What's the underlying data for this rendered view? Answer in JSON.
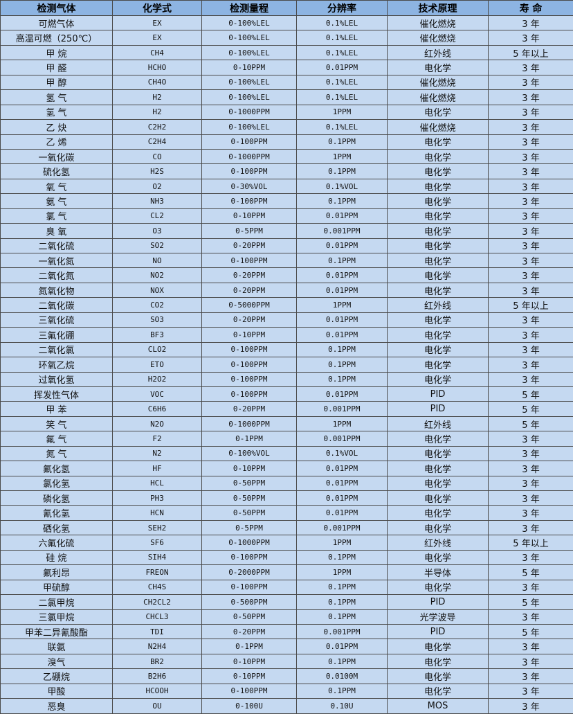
{
  "headers": [
    "检测气体",
    "化学式",
    "检测量程",
    "分辨率",
    "技术原理",
    "寿 命"
  ],
  "rows": [
    [
      "可燃气体",
      "EX",
      "0-100%LEL",
      "0.1%LEL",
      "催化燃烧",
      "3 年"
    ],
    [
      "高温可燃（250℃）",
      "EX",
      "0-100%LEL",
      "0.1%LEL",
      "催化燃烧",
      "3 年"
    ],
    [
      "甲 烷",
      "CH4",
      "0-100%LEL",
      "0.1%LEL",
      "红外线",
      "5 年以上"
    ],
    [
      "甲 醛",
      "HCHO",
      "0-10PPM",
      "0.01PPM",
      "电化学",
      "3 年"
    ],
    [
      "甲 醇",
      "CH4O",
      "0-100%LEL",
      "0.1%LEL",
      "催化燃烧",
      "3 年"
    ],
    [
      "氢 气",
      "H2",
      "0-100%LEL",
      "0.1%LEL",
      "催化燃烧",
      "3 年"
    ],
    [
      "氢 气",
      "H2",
      "0-1000PPM",
      "1PPM",
      "电化学",
      "3 年"
    ],
    [
      "乙 炔",
      "C2H2",
      "0-100%LEL",
      "0.1%LEL",
      "催化燃烧",
      "3 年"
    ],
    [
      "乙 烯",
      "C2H4",
      "0-100PPM",
      "0.1PPM",
      "电化学",
      "3 年"
    ],
    [
      "一氧化碳",
      "CO",
      "0-1000PPM",
      "1PPM",
      "电化学",
      "3 年"
    ],
    [
      "硫化氢",
      "H2S",
      "0-100PPM",
      "0.1PPM",
      "电化学",
      "3 年"
    ],
    [
      "氧 气",
      "O2",
      "0-30%VOL",
      "0.1%VOL",
      "电化学",
      "3 年"
    ],
    [
      "氨 气",
      "NH3",
      "0-100PPM",
      "0.1PPM",
      "电化学",
      "3 年"
    ],
    [
      "氯 气",
      "CL2",
      "0-10PPM",
      "0.01PPM",
      "电化学",
      "3 年"
    ],
    [
      "臭 氧",
      "O3",
      "0-5PPM",
      "0.001PPM",
      "电化学",
      "3 年"
    ],
    [
      "二氧化硫",
      "SO2",
      "0-20PPM",
      "0.01PPM",
      "电化学",
      "3 年"
    ],
    [
      "一氧化氮",
      "NO",
      "0-100PPM",
      "0.1PPM",
      "电化学",
      "3 年"
    ],
    [
      "二氧化氮",
      "NO2",
      "0-20PPM",
      "0.01PPM",
      "电化学",
      "3 年"
    ],
    [
      "氮氧化物",
      "NOX",
      "0-20PPM",
      "0.01PPM",
      "电化学",
      "3 年"
    ],
    [
      "二氧化碳",
      "CO2",
      "0-5000PPM",
      "1PPM",
      "红外线",
      "5 年以上"
    ],
    [
      "三氧化硫",
      "SO3",
      "0-20PPM",
      "0.01PPM",
      "电化学",
      "3 年"
    ],
    [
      "三氟化硼",
      "BF3",
      "0-10PPM",
      "0.01PPM",
      "电化学",
      "3 年"
    ],
    [
      "二氧化氯",
      "CLO2",
      "0-100PPM",
      "0.1PPM",
      "电化学",
      "3 年"
    ],
    [
      "环氧乙烷",
      "ETO",
      "0-100PPM",
      "0.1PPM",
      "电化学",
      "3 年"
    ],
    [
      "过氧化氢",
      "H2O2",
      "0-100PPM",
      "0.1PPM",
      "电化学",
      "3 年"
    ],
    [
      "挥发性气体",
      "VOC",
      "0-100PPM",
      "0.01PPM",
      "PID",
      "5 年"
    ],
    [
      "甲 苯",
      "C6H6",
      "0-20PPM",
      "0.001PPM",
      "PID",
      "5 年"
    ],
    [
      "笑 气",
      "N2O",
      "0-1000PPM",
      "1PPM",
      "红外线",
      "5 年"
    ],
    [
      "氟 气",
      "F2",
      "0-1PPM",
      "0.001PPM",
      "电化学",
      "3 年"
    ],
    [
      "氮 气",
      "N2",
      "0-100%VOL",
      "0.1%VOL",
      "电化学",
      "3 年"
    ],
    [
      "氟化氢",
      "HF",
      "0-10PPM",
      "0.01PPM",
      "电化学",
      "3 年"
    ],
    [
      "氯化氢",
      "HCL",
      "0-50PPM",
      "0.01PPM",
      "电化学",
      "3 年"
    ],
    [
      "磷化氢",
      "PH3",
      "0-50PPM",
      "0.01PPM",
      "电化学",
      "3 年"
    ],
    [
      "氰化氢",
      "HCN",
      "0-50PPM",
      "0.01PPM",
      "电化学",
      "3 年"
    ],
    [
      "硒化氢",
      "SEH2",
      "0-5PPM",
      "0.001PPM",
      "电化学",
      "3 年"
    ],
    [
      "六氟化硫",
      "SF6",
      "0-1000PPM",
      "1PPM",
      "红外线",
      "5 年以上"
    ],
    [
      "硅 烷",
      "SIH4",
      "0-100PPM",
      "0.1PPM",
      "电化学",
      "3 年"
    ],
    [
      "氟利昂",
      "FREON",
      "0-2000PPM",
      "1PPM",
      "半导体",
      "5 年"
    ],
    [
      "甲硫醇",
      "CH4S",
      "0-100PPM",
      "0.1PPM",
      "电化学",
      "3 年"
    ],
    [
      "二氯甲烷",
      "CH2CL2",
      "0-500PPM",
      "0.1PPM",
      "PID",
      "5 年"
    ],
    [
      "三氯甲烷",
      "CHCL3",
      "0-50PPM",
      "0.1PPM",
      "光学波导",
      "3 年"
    ],
    [
      "甲苯二异氰酸酯",
      "TDI",
      "0-20PPM",
      "0.001PPM",
      "PID",
      "5 年"
    ],
    [
      "联氨",
      "N2H4",
      "0-1PPM",
      "0.01PPM",
      "电化学",
      "3 年"
    ],
    [
      "溴气",
      "BR2",
      "0-10PPM",
      "0.1PPM",
      "电化学",
      "3 年"
    ],
    [
      "乙硼烷",
      "B2H6",
      "0-10PPM",
      "0.0100M",
      "电化学",
      "3 年"
    ],
    [
      "甲酸",
      "HCOOH",
      "0-100PPM",
      "0.1PPM",
      "电化学",
      "3 年"
    ],
    [
      "恶臭",
      "OU",
      "0-100U",
      "0.10U",
      "MOS",
      "3 年"
    ]
  ]
}
